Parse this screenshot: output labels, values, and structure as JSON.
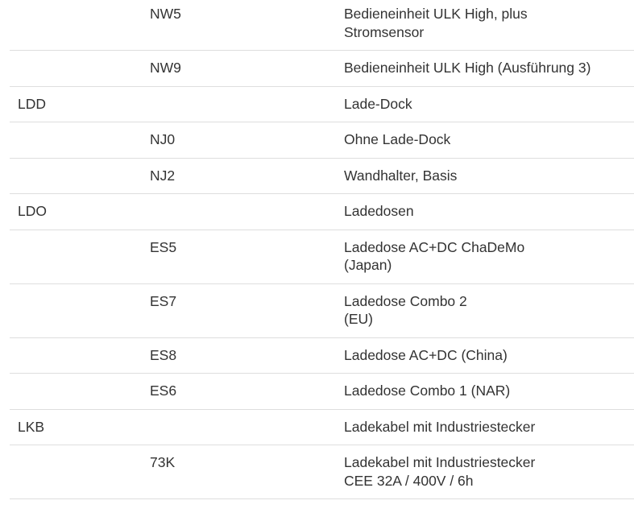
{
  "rows": [
    {
      "group": "",
      "code": "NW5",
      "desc": "Bedieneinheit ULK High, plus\nStromsensor"
    },
    {
      "group": "",
      "code": "NW9",
      "desc": "Bedieneinheit ULK High (Ausführung 3)"
    },
    {
      "group": "LDD",
      "code": "",
      "desc": "Lade-Dock"
    },
    {
      "group": "",
      "code": "NJ0",
      "desc": "Ohne Lade-Dock"
    },
    {
      "group": "",
      "code": "NJ2",
      "desc": "Wandhalter, Basis"
    },
    {
      "group": "LDO",
      "code": "",
      "desc": "Ladedosen"
    },
    {
      "group": "",
      "code": "ES5",
      "desc": "Ladedose AC+DC ChaDeMo\n(Japan)"
    },
    {
      "group": "",
      "code": "ES7",
      "desc": "Ladedose Combo 2\n(EU)"
    },
    {
      "group": "",
      "code": "ES8",
      "desc": "Ladedose AC+DC (China)"
    },
    {
      "group": "",
      "code": "ES6",
      "desc": "Ladedose Combo 1 (NAR)"
    },
    {
      "group": "LKB",
      "code": "",
      "desc": "Ladekabel mit Industriestecker"
    },
    {
      "group": "",
      "code": "73K",
      "desc": "Ladekabel mit Industriestecker\nCEE 32A / 400V / 6h"
    }
  ]
}
